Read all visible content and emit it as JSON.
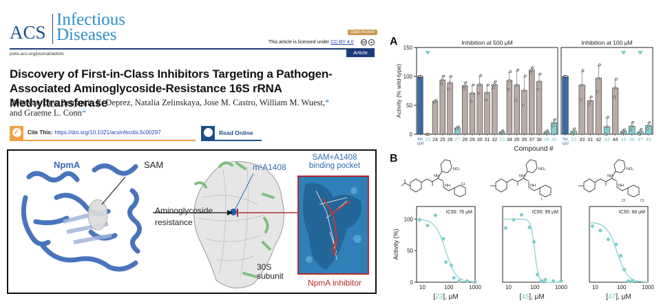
{
  "header": {
    "logo_acs": "ACS",
    "logo_journal_line1": "Infectious",
    "logo_journal_line2": "Diseases",
    "open_access_badge": "Open Access",
    "license_text": "This article is licensed under ",
    "license_link": "CC-BY 4.0",
    "cc_icons": [
      "cc-icon",
      "by-icon"
    ],
    "journal_url": "pubs.acs.org/journal/aidcbc",
    "article_type": "Article"
  },
  "paper": {
    "title": "Discovery of First-in-Class Inhibitors Targeting a Pathogen-Associated Aminoglycoside-Resistance 16S rRNA Methyltransferase",
    "authors_text": "Debayan Dey, Benjamin E. Deprez, Natalia Zelinskaya, Jose M. Castro, William M. Wuest,",
    "authors_star1": "*",
    "authors_text2": " and Graeme L. Conn",
    "authors_star2": "*",
    "cite_label": "Cite This:",
    "cite_doi": "https://doi.org/10.1021/acsinfecdis.5c00297",
    "read_online": "Read Online"
  },
  "toc_graphic": {
    "protein_label": "NpmA",
    "sam_label": "SAM",
    "arrow_label_line1": "Aminoglycoside",
    "arrow_label_line2": "resistance",
    "site_label": "m¹A1408",
    "subunit_line1": "30S",
    "subunit_line2": "subunit",
    "pocket_title_line1": "SAM+A1408",
    "pocket_title_line2": "binding pocket",
    "inhibitor_label": "NpmA inhibitor",
    "colors": {
      "protein": "#3566b5",
      "pocket": "#2f7fb8",
      "inhibitor": "#b52a2a",
      "rrna": "#7fbf7f"
    }
  },
  "figure": {
    "panel_a_letter": "A",
    "panel_b_letter": "B"
  },
  "chart_data": [
    {
      "type": "bar",
      "title": "Inhibition at 500 µM",
      "xlabel": "Compound #",
      "ylabel": "Activity (% wild-type)",
      "ylim": [
        0,
        150
      ],
      "yticks": [
        0,
        50,
        100,
        150
      ],
      "categories": [
        "No cpd",
        "23",
        "24",
        "25",
        "26",
        "27",
        "28",
        "29",
        "30",
        "31",
        "32",
        "33",
        "34",
        "35",
        "36",
        "37",
        "38",
        "39",
        "40"
      ],
      "values": [
        100,
        0,
        57,
        94,
        89,
        11,
        84,
        71,
        86,
        72,
        86,
        4,
        93,
        85,
        76,
        111,
        91,
        4,
        20
      ],
      "errors": [
        0,
        0,
        2,
        6,
        10,
        2,
        5,
        13,
        14,
        12,
        5,
        2,
        14,
        24,
        23,
        4,
        12,
        2,
        5
      ],
      "highlighted": [
        "23",
        "27",
        "33",
        "39",
        "40"
      ],
      "hit_markers": [
        "23"
      ],
      "colors": {
        "control": "#3a6aa8",
        "compound": "#b9aaa6",
        "hit": "#7fcfcf",
        "hit_label": "#7fc4c6"
      }
    },
    {
      "type": "bar",
      "title": "Inhibition at 100 µM",
      "xlabel": "Compound #",
      "ylim": [
        0,
        150
      ],
      "categories": [
        "No cpd",
        "23",
        "33",
        "41",
        "42",
        "43",
        "44",
        "45",
        "46",
        "47",
        "48"
      ],
      "values": [
        100,
        5,
        85,
        58,
        97,
        13,
        80,
        5,
        14,
        4,
        15
      ],
      "errors": [
        0,
        4,
        23,
        6,
        21,
        15,
        14,
        3,
        6,
        4,
        5
      ],
      "highlighted": [
        "23",
        "43",
        "45",
        "46",
        "47",
        "48"
      ],
      "hit_markers": [
        "45",
        "47"
      ],
      "colors": {
        "control": "#3a6aa8",
        "compound": "#b9aaa6",
        "hit": "#7fcfcf"
      }
    },
    {
      "type": "scatter",
      "compound": "23",
      "annotation": "IC50: 76 µM",
      "ic50": 76,
      "xlabel": "[23], µM",
      "ylabel": "Activity (%)",
      "xscale": "log",
      "xlim": [
        6,
        1000
      ],
      "xticks": [
        10,
        100,
        1000
      ],
      "ylim": [
        0,
        120
      ],
      "yticks": [
        0,
        50,
        100
      ],
      "x": [
        7.8,
        15.6,
        31.3,
        62.5,
        78,
        125,
        156,
        250,
        500,
        1000
      ],
      "y": [
        99,
        90,
        106,
        69,
        32,
        27,
        7,
        2,
        2,
        0
      ],
      "substituents": "4-acetylphenyl; 2-chlorobenzamide; 3-nitrophenyl"
    },
    {
      "type": "scatter",
      "compound": "45",
      "annotation": "IC50: 99 µM",
      "ic50": 99,
      "xlabel": "[45], µM",
      "xscale": "log",
      "xlim": [
        6,
        1000
      ],
      "xticks": [
        10,
        100,
        1000
      ],
      "ylim": [
        0,
        120
      ],
      "x": [
        7.8,
        15.6,
        31.3,
        62.5,
        93,
        125,
        180,
        250,
        500,
        1000
      ],
      "y": [
        86,
        99,
        107,
        87,
        64,
        12,
        2,
        4,
        2,
        2
      ],
      "substituents": "4-methylphenyl; 2-iodobenzamide; 3-nitrophenyl"
    },
    {
      "type": "scatter",
      "compound": "47",
      "annotation": "IC50: 68 µM",
      "ic50": 68,
      "xlabel": "[47], µM",
      "xscale": "log",
      "xlim": [
        6,
        1000
      ],
      "xticks": [
        10,
        100,
        1000
      ],
      "ylim": [
        0,
        120
      ],
      "x": [
        7.8,
        15.6,
        31.3,
        62.5,
        93,
        125,
        180,
        250
      ],
      "y": [
        89,
        82,
        68,
        60,
        42,
        20,
        2,
        2
      ],
      "substituents": "4-methylphenyl; 2,4-dichlorobenzamide; 3-nitrophenyl"
    }
  ],
  "dose_response_ylabel": "Activity (%)",
  "unit_suffix": "], µM"
}
